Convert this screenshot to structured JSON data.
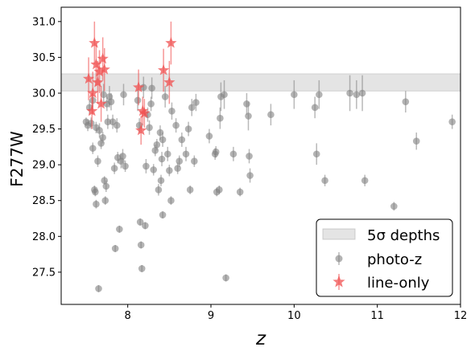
{
  "chart_data": {
    "type": "scatter",
    "xlabel": "z",
    "ylabel": "F277W",
    "xlim": [
      7.2,
      12.0
    ],
    "ylim": [
      27.05,
      31.2
    ],
    "xticks": [
      8,
      9,
      10,
      11,
      12
    ],
    "yticks": [
      27.5,
      28.0,
      28.5,
      29.0,
      29.5,
      30.0,
      30.5,
      31.0
    ],
    "grid": false,
    "legend_position": "lower-right",
    "depth_band": {
      "label": "5σ depths",
      "y_low": 30.03,
      "y_high": 30.27,
      "color": "#b3b3b3"
    },
    "series": [
      {
        "name": "photo-z",
        "marker": "circle",
        "color": "#808080",
        "points": [
          {
            "x": 7.5,
            "y": 29.6,
            "err": 0.06
          },
          {
            "x": 7.52,
            "y": 29.55,
            "err": 0.08
          },
          {
            "x": 7.54,
            "y": 29.8,
            "err": 0.1
          },
          {
            "x": 7.56,
            "y": 29.58,
            "err": 0.08
          },
          {
            "x": 7.58,
            "y": 29.9,
            "err": 0.1
          },
          {
            "x": 7.58,
            "y": 29.23,
            "err": 0.08
          },
          {
            "x": 7.6,
            "y": 28.65,
            "err": 0.06
          },
          {
            "x": 7.61,
            "y": 28.62,
            "err": 0.06
          },
          {
            "x": 7.62,
            "y": 29.52,
            "err": 0.08
          },
          {
            "x": 7.62,
            "y": 28.45,
            "err": 0.06
          },
          {
            "x": 7.64,
            "y": 29.05,
            "err": 0.08
          },
          {
            "x": 7.65,
            "y": 27.27,
            "err": 0.05
          },
          {
            "x": 7.66,
            "y": 29.48,
            "err": 0.1
          },
          {
            "x": 7.68,
            "y": 29.3,
            "err": 0.08
          },
          {
            "x": 7.7,
            "y": 29.38,
            "err": 0.08
          },
          {
            "x": 7.71,
            "y": 29.98,
            "err": 0.15
          },
          {
            "x": 7.72,
            "y": 28.78,
            "err": 0.06
          },
          {
            "x": 7.73,
            "y": 28.5,
            "err": 0.06
          },
          {
            "x": 7.74,
            "y": 28.7,
            "err": 0.08
          },
          {
            "x": 7.75,
            "y": 29.85,
            "err": 0.1
          },
          {
            "x": 7.76,
            "y": 29.6,
            "err": 0.1
          },
          {
            "x": 7.78,
            "y": 29.95,
            "err": 0.15
          },
          {
            "x": 7.8,
            "y": 29.88,
            "err": 0.12
          },
          {
            "x": 7.82,
            "y": 29.6,
            "err": 0.1
          },
          {
            "x": 7.84,
            "y": 28.95,
            "err": 0.08
          },
          {
            "x": 7.85,
            "y": 27.83,
            "err": 0.05
          },
          {
            "x": 7.87,
            "y": 29.55,
            "err": 0.1
          },
          {
            "x": 7.88,
            "y": 29.1,
            "err": 0.08
          },
          {
            "x": 7.9,
            "y": 28.1,
            "err": 0.05
          },
          {
            "x": 7.92,
            "y": 29.05,
            "err": 0.1
          },
          {
            "x": 7.94,
            "y": 29.12,
            "err": 0.1
          },
          {
            "x": 7.95,
            "y": 29.98,
            "err": 0.15
          },
          {
            "x": 7.97,
            "y": 28.98,
            "err": 0.08
          },
          {
            "x": 8.12,
            "y": 29.9,
            "err": 0.15
          },
          {
            "x": 8.14,
            "y": 29.55,
            "err": 0.1
          },
          {
            "x": 8.15,
            "y": 28.2,
            "err": 0.05
          },
          {
            "x": 8.16,
            "y": 27.88,
            "err": 0.05
          },
          {
            "x": 8.17,
            "y": 27.55,
            "err": 0.05
          },
          {
            "x": 8.19,
            "y": 30.08,
            "err": 0.15
          },
          {
            "x": 8.21,
            "y": 28.15,
            "err": 0.05
          },
          {
            "x": 8.22,
            "y": 28.98,
            "err": 0.1
          },
          {
            "x": 8.24,
            "y": 29.7,
            "err": 0.1
          },
          {
            "x": 8.26,
            "y": 29.52,
            "err": 0.1
          },
          {
            "x": 8.28,
            "y": 29.85,
            "err": 0.1
          },
          {
            "x": 8.29,
            "y": 30.07,
            "err": 0.15
          },
          {
            "x": 8.31,
            "y": 28.93,
            "err": 0.08
          },
          {
            "x": 8.33,
            "y": 29.2,
            "err": 0.08
          },
          {
            "x": 8.35,
            "y": 29.28,
            "err": 0.08
          },
          {
            "x": 8.37,
            "y": 28.65,
            "err": 0.08
          },
          {
            "x": 8.39,
            "y": 29.45,
            "err": 0.1
          },
          {
            "x": 8.4,
            "y": 28.78,
            "err": 0.08
          },
          {
            "x": 8.41,
            "y": 29.08,
            "err": 0.1
          },
          {
            "x": 8.42,
            "y": 29.35,
            "err": 0.1
          },
          {
            "x": 8.42,
            "y": 28.3,
            "err": 0.05
          },
          {
            "x": 8.45,
            "y": 29.95,
            "err": 0.15
          },
          {
            "x": 8.48,
            "y": 29.15,
            "err": 0.1
          },
          {
            "x": 8.5,
            "y": 28.92,
            "err": 0.08
          },
          {
            "x": 8.52,
            "y": 28.5,
            "err": 0.06
          },
          {
            "x": 8.53,
            "y": 29.75,
            "err": 0.12
          },
          {
            "x": 8.58,
            "y": 29.55,
            "err": 0.1
          },
          {
            "x": 8.6,
            "y": 28.95,
            "err": 0.08
          },
          {
            "x": 8.62,
            "y": 29.05,
            "err": 0.08
          },
          {
            "x": 8.65,
            "y": 29.35,
            "err": 0.1
          },
          {
            "x": 8.7,
            "y": 29.15,
            "err": 0.1
          },
          {
            "x": 8.73,
            "y": 29.5,
            "err": 0.1
          },
          {
            "x": 8.75,
            "y": 28.65,
            "err": 0.06
          },
          {
            "x": 8.77,
            "y": 29.8,
            "err": 0.12
          },
          {
            "x": 8.8,
            "y": 29.05,
            "err": 0.08
          },
          {
            "x": 8.82,
            "y": 29.87,
            "err": 0.12
          },
          {
            "x": 8.98,
            "y": 29.4,
            "err": 0.1
          },
          {
            "x": 9.05,
            "y": 29.15,
            "err": 0.08
          },
          {
            "x": 9.06,
            "y": 29.18,
            "err": 0.08
          },
          {
            "x": 9.07,
            "y": 28.62,
            "err": 0.06
          },
          {
            "x": 9.1,
            "y": 28.65,
            "err": 0.06
          },
          {
            "x": 9.11,
            "y": 29.65,
            "err": 0.15
          },
          {
            "x": 9.12,
            "y": 29.95,
            "err": 0.2
          },
          {
            "x": 9.16,
            "y": 29.98,
            "err": 0.2
          },
          {
            "x": 9.18,
            "y": 27.42,
            "err": 0.05
          },
          {
            "x": 9.27,
            "y": 29.15,
            "err": 0.1
          },
          {
            "x": 9.35,
            "y": 28.62,
            "err": 0.06
          },
          {
            "x": 9.43,
            "y": 29.85,
            "err": 0.15
          },
          {
            "x": 9.45,
            "y": 29.68,
            "err": 0.2
          },
          {
            "x": 9.46,
            "y": 29.12,
            "err": 0.1
          },
          {
            "x": 9.47,
            "y": 28.85,
            "err": 0.1
          },
          {
            "x": 9.72,
            "y": 29.7,
            "err": 0.15
          },
          {
            "x": 10.0,
            "y": 29.98,
            "err": 0.2
          },
          {
            "x": 10.25,
            "y": 29.8,
            "err": 0.15
          },
          {
            "x": 10.27,
            "y": 29.15,
            "err": 0.15
          },
          {
            "x": 10.3,
            "y": 29.98,
            "err": 0.2
          },
          {
            "x": 10.37,
            "y": 28.78,
            "err": 0.08
          },
          {
            "x": 10.67,
            "y": 30.0,
            "err": 0.25
          },
          {
            "x": 10.75,
            "y": 29.98,
            "err": 0.2
          },
          {
            "x": 10.82,
            "y": 30.0,
            "err": 0.25
          },
          {
            "x": 10.85,
            "y": 28.78,
            "err": 0.08
          },
          {
            "x": 11.2,
            "y": 28.42,
            "err": 0.06
          },
          {
            "x": 11.34,
            "y": 29.88,
            "err": 0.15
          },
          {
            "x": 11.47,
            "y": 29.33,
            "err": 0.12
          },
          {
            "x": 11.9,
            "y": 29.6,
            "err": 0.1
          }
        ]
      },
      {
        "name": "line-only",
        "marker": "star",
        "color": "#f05050",
        "points": [
          {
            "x": 7.53,
            "y": 30.2,
            "err": 0.3
          },
          {
            "x": 7.57,
            "y": 29.75,
            "err": 0.25
          },
          {
            "x": 7.58,
            "y": 30.0,
            "err": 0.3
          },
          {
            "x": 7.6,
            "y": 30.7,
            "err": 0.3
          },
          {
            "x": 7.62,
            "y": 30.4,
            "err": 0.3
          },
          {
            "x": 7.64,
            "y": 30.15,
            "err": 0.3
          },
          {
            "x": 7.66,
            "y": 30.3,
            "err": 0.3
          },
          {
            "x": 7.68,
            "y": 29.85,
            "err": 0.25
          },
          {
            "x": 7.7,
            "y": 30.48,
            "err": 0.3
          },
          {
            "x": 7.72,
            "y": 30.33,
            "err": 0.3
          },
          {
            "x": 8.13,
            "y": 30.08,
            "err": 0.25
          },
          {
            "x": 8.16,
            "y": 29.48,
            "err": 0.2
          },
          {
            "x": 8.18,
            "y": 29.75,
            "err": 0.2
          },
          {
            "x": 8.2,
            "y": 29.72,
            "err": 0.2
          },
          {
            "x": 8.43,
            "y": 30.32,
            "err": 0.3
          },
          {
            "x": 8.5,
            "y": 30.15,
            "err": 0.3
          },
          {
            "x": 8.52,
            "y": 30.7,
            "err": 0.3
          }
        ]
      }
    ]
  }
}
